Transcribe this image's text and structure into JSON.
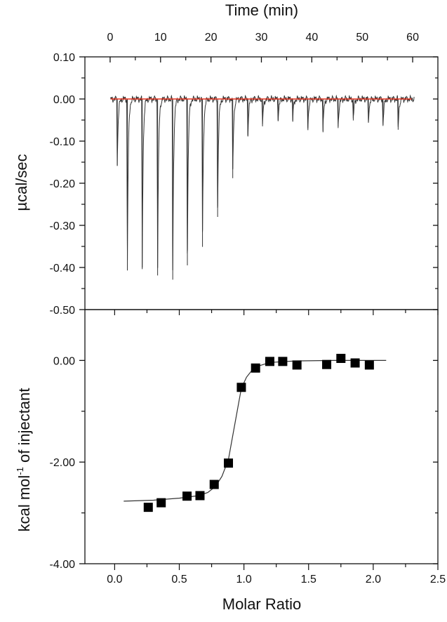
{
  "chart_data": [
    {
      "type": "line",
      "panel": "top",
      "title": "",
      "xlabel": "Time (min)",
      "ylabel": "µcal/sec",
      "xlim": [
        -5,
        65
      ],
      "ylim": [
        -0.5,
        0.1
      ],
      "x_ticks": [
        0,
        10,
        20,
        30,
        40,
        50,
        60
      ],
      "x_tick_labels": [
        "0",
        "10",
        "20",
        "30",
        "40",
        "50",
        "60"
      ],
      "y_ticks": [
        0.1,
        0.0,
        -0.1,
        -0.2,
        -0.3,
        -0.4,
        -0.5
      ],
      "y_tick_labels": [
        "0.10",
        "0.00",
        "-0.10",
        "-0.20",
        "-0.30",
        "-0.40",
        "-0.50"
      ],
      "grid": false,
      "baseline": {
        "y": 0.0,
        "x_range": [
          0.1,
          59.8
        ],
        "color": "#e8321e"
      },
      "trace_color": "#333333",
      "injections": {
        "time_min": [
          1.3,
          3.3,
          6.25,
          9.3,
          12.3,
          15.2,
          18.2,
          21.2,
          24.2,
          27.2,
          30.1,
          33.2,
          36.1,
          39.1,
          42.1,
          45.1,
          48.1,
          51.1,
          54.0,
          57.0
        ],
        "peak_ucal_per_sec": [
          -0.158,
          -0.407,
          -0.404,
          -0.419,
          -0.429,
          -0.395,
          -0.351,
          -0.28,
          -0.188,
          -0.089,
          -0.065,
          -0.051,
          -0.051,
          -0.069,
          -0.079,
          -0.069,
          -0.051,
          -0.056,
          -0.064,
          -0.073
        ]
      }
    },
    {
      "type": "scatter",
      "panel": "bottom",
      "title": "",
      "xlabel": "Molar Ratio",
      "ylabel": "kcal mol",
      "ylabel_sup": "-1",
      "ylabel_suffix": " of injectant",
      "xlim": [
        -0.23,
        2.5
      ],
      "ylim": [
        -4.0,
        1.0
      ],
      "x_ticks": [
        0.0,
        0.5,
        1.0,
        1.5,
        2.0,
        2.5
      ],
      "x_tick_labels": [
        "0.0",
        "0.5",
        "1.0",
        "1.5",
        "2.0",
        "2.5"
      ],
      "y_ticks": [
        0.0,
        -2.0,
        -4.0
      ],
      "y_tick_labels": [
        "0.00",
        "-2.00",
        "-4.00"
      ],
      "grid": false,
      "series": [
        {
          "name": "data",
          "marker": "square",
          "color": "#000000",
          "x": [
            0.26,
            0.36,
            0.56,
            0.66,
            0.77,
            0.88,
            0.98,
            1.09,
            1.2,
            1.3,
            1.41,
            1.64,
            1.75,
            1.86,
            1.97
          ],
          "y": [
            -2.89,
            -2.8,
            -2.67,
            -2.66,
            -2.44,
            -2.02,
            -0.53,
            -0.15,
            -0.02,
            -0.02,
            -0.09,
            -0.08,
            0.04,
            -0.05,
            -0.09
          ]
        },
        {
          "name": "fit",
          "style": "line",
          "color": "#333333",
          "x": [
            0.07,
            0.3,
            0.5,
            0.65,
            0.72,
            0.78,
            0.83,
            0.88,
            0.93,
            0.98,
            1.02,
            1.06,
            1.1,
            1.2,
            1.4,
            1.7,
            2.1
          ],
          "y": [
            -2.77,
            -2.75,
            -2.71,
            -2.66,
            -2.6,
            -2.48,
            -2.28,
            -1.95,
            -1.25,
            -0.55,
            -0.33,
            -0.2,
            -0.12,
            -0.04,
            -0.01,
            0.0,
            0.0
          ]
        }
      ]
    }
  ]
}
